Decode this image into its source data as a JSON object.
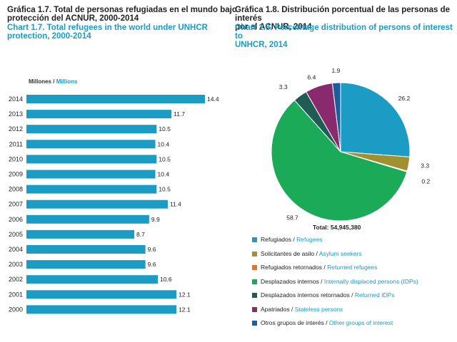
{
  "left_chart": {
    "title_es_1": "Gráfica 1.7. Total de personas refugiadas en el mundo bajo",
    "title_es_2": "protección del ACNUR, 2000-2014",
    "title_en_1": "Chart 1.7. Total refugees in the world under UNHCR",
    "title_en_2": "protection, 2000-2014",
    "unit_es": "Millones /",
    "unit_en": "Millions"
  },
  "right_chart": {
    "title_es_1": "Gráfica 1.8. Distribución porcentual de las personas de interés",
    "title_es_2": "por el ACNUR, 2014",
    "title_en_1": "Chart 1.8. Percentage distribution of persons of interest to",
    "title_en_2": "UNHCR, 2014",
    "total": "Total: 54,945,380"
  },
  "colors": {
    "bar": "#1a9cc4",
    "refugees": "#1a9cc4",
    "asylum": "#a09030",
    "returned_refugees": "#e8742a",
    "idps": "#1aaa58",
    "returned_idps": "#1e5c54",
    "stateless": "#8a2a6e",
    "others": "#1a5ea0"
  },
  "chart_data": [
    {
      "type": "bar",
      "orientation": "horizontal",
      "categories": [
        "2014",
        "2013",
        "2012",
        "2011",
        "2010",
        "2009",
        "2008",
        "2007",
        "2006",
        "2005",
        "2004",
        "2003",
        "2002",
        "2001",
        "2000"
      ],
      "values": [
        14.4,
        11.7,
        10.5,
        10.4,
        10.5,
        10.4,
        10.5,
        11.4,
        9.9,
        8.7,
        9.6,
        9.6,
        10.6,
        12.1,
        12.1
      ],
      "value_labels": [
        "14.4",
        "11.7",
        "10.5",
        "10.4",
        "10.5",
        "10.4",
        "10.5",
        "11.4",
        "9.9",
        "8.7",
        "9.6",
        "9.6",
        "10.6",
        "12.1",
        "12.1"
      ],
      "xlim": [
        0,
        14.4
      ],
      "grid": false
    },
    {
      "type": "pie",
      "labels": [
        {
          "es": "Refugiados /",
          "en": "Refugees"
        },
        {
          "es": "Solicitantes de asilo /",
          "en": "Asylum seekers"
        },
        {
          "es": "Refugiados retornados /",
          "en": "Returned refugees"
        },
        {
          "es": "Desplazados internos /",
          "en": "Internally displaced persons (IDPs)"
        },
        {
          "es": "Desplazados internos retornados /",
          "en": "Returned IDPs"
        },
        {
          "es": "Apatriados /",
          "en": "Stateless persons"
        },
        {
          "es": "Otros grupos de interés /",
          "en": "Other groups of interest"
        }
      ],
      "values": [
        26.2,
        3.3,
        0.2,
        58.7,
        3.3,
        6.4,
        1.9
      ],
      "value_labels": [
        "26.2",
        "3.3",
        "0.2",
        "58.7",
        "3.3",
        "6.4",
        "1.9"
      ],
      "color_keys": [
        "refugees",
        "asylum",
        "returned_refugees",
        "idps",
        "returned_idps",
        "stateless",
        "others"
      ],
      "legend_position": "bottom"
    }
  ]
}
